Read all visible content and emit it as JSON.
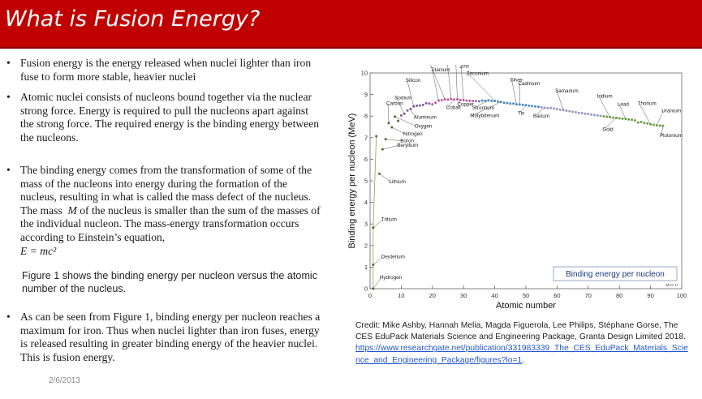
{
  "slide": {
    "title": "What is Fusion Energy?",
    "bullets": [
      "Fusion energy is the energy released when nuclei lighter than iron fuse to form more stable, heavier nuclei",
      "Atomic nuclei consists of nucleons bound together via the nuclear strong force. Energy is required to pull the nucleons apart against the strong force. The required energy is the binding energy between the nucleons.",
      "The binding energy comes from the transformation of some of the mass of the nucleons into energy during the formation of the nucleus, resulting in what is called the mass defect of the nucleus. The mass",
      "As can be seen from Figure 1, binding energy per nucleon reaches a maximum for iron. Thus when nuclei lighter than iron fuses, energy is released resulting in greater binding energy of the heavier nuclei. This is fusion energy."
    ],
    "bullet3_mass_symbol": "M",
    "bullet3_rest": " of the nucleus is smaller than the sum of the masses of the individual nucleon.  The mass-energy transformation occurs according to Einstein’s equation,",
    "equation": "E = mc²",
    "figure_note": "Figure 1 shows the binding energy per nucleon versus the atomic number of the nucleus.",
    "date": "2/6/2013",
    "bullet_symbol": "•"
  },
  "credit": {
    "text": "Credit: Mike Ashby, Hannah Melia, Magda Figuerola, Lee Philips, Stéphane Gorse, The CES EduPack Materials Science and Engineering Package, Granta Design Limited 2018.",
    "link": "https://www.researchgate.net/publication/331983339_The_CES_EduPack_Materials_Science_and_Engineering_Package/figures?lo=1",
    "period": "."
  },
  "chart_data": {
    "type": "scatter",
    "xlabel": "Atomic number",
    "ylabel": "Binding energy per nucleon (MeV)",
    "legend_label": "Binding energy per nucleon",
    "legend_placement": "bottom-right",
    "stamp": "MAY 17",
    "xlim": [
      0,
      100
    ],
    "ylim": [
      0,
      10
    ],
    "xticks": [
      0,
      10,
      20,
      30,
      40,
      50,
      60,
      70,
      80,
      90,
      100
    ],
    "yticks": [
      0,
      1,
      2,
      3,
      4,
      5,
      6,
      7,
      8,
      9,
      10
    ],
    "grid": false,
    "series_color": "#7a9a3a",
    "labels": [
      {
        "name": "Hydrogen",
        "z": 1,
        "be": 0.0
      },
      {
        "name": "Deuterium",
        "z": 1,
        "be": 1.11
      },
      {
        "name": "Tritium",
        "z": 1,
        "be": 2.83
      },
      {
        "name": "Lithium",
        "z": 3,
        "be": 5.33
      },
      {
        "name": "Beryllium",
        "z": 4,
        "be": 6.46
      },
      {
        "name": "Boron",
        "z": 5,
        "be": 6.93
      },
      {
        "name": "Nitrogen",
        "z": 7,
        "be": 7.48
      },
      {
        "name": "Oxygen",
        "z": 8,
        "be": 7.98
      },
      {
        "name": "Carbon",
        "z": 6,
        "be": 7.68
      },
      {
        "name": "Aluminum",
        "z": 13,
        "be": 8.33
      },
      {
        "name": "Sodium",
        "z": 11,
        "be": 8.11
      },
      {
        "name": "Silicon",
        "z": 14,
        "be": 8.45
      },
      {
        "name": "Titanium",
        "z": 22,
        "be": 8.72
      },
      {
        "name": "Chromium",
        "z": 24,
        "be": 8.78
      },
      {
        "name": "Iron",
        "z": 26,
        "be": 8.79
      },
      {
        "name": "Nickel",
        "z": 28,
        "be": 8.78
      },
      {
        "name": "Cobalt",
        "z": 27,
        "be": 8.77
      },
      {
        "name": "Copper",
        "z": 29,
        "be": 8.75
      },
      {
        "name": "Zinc",
        "z": 30,
        "be": 8.74
      },
      {
        "name": "Zirconium",
        "z": 40,
        "be": 8.71
      },
      {
        "name": "Silver",
        "z": 47,
        "be": 8.55
      },
      {
        "name": "Strontium",
        "z": 38,
        "be": 8.73
      },
      {
        "name": "Tin",
        "z": 50,
        "be": 8.51
      },
      {
        "name": "Molybdenum",
        "z": 42,
        "be": 8.66
      },
      {
        "name": "Barium",
        "z": 56,
        "be": 8.39
      },
      {
        "name": "Cadmium",
        "z": 48,
        "be": 8.54
      },
      {
        "name": "Samarium",
        "z": 62,
        "be": 8.28
      },
      {
        "name": "Gold",
        "z": 79,
        "be": 7.92
      },
      {
        "name": "Iridium",
        "z": 77,
        "be": 7.95
      },
      {
        "name": "Lead",
        "z": 82,
        "be": 7.87
      },
      {
        "name": "Thorium",
        "z": 90,
        "be": 7.62
      },
      {
        "name": "Uranium",
        "z": 92,
        "be": 7.57
      },
      {
        "name": "Plutonium",
        "z": 94,
        "be": 7.55
      }
    ],
    "points": [
      [
        1,
        0.0
      ],
      [
        1,
        1.11
      ],
      [
        1,
        2.83
      ],
      [
        2,
        7.07
      ],
      [
        3,
        5.33
      ],
      [
        4,
        6.46
      ],
      [
        5,
        6.93
      ],
      [
        6,
        7.68
      ],
      [
        7,
        7.48
      ],
      [
        8,
        7.98
      ],
      [
        9,
        7.78
      ],
      [
        10,
        8.03
      ],
      [
        11,
        8.11
      ],
      [
        12,
        8.26
      ],
      [
        13,
        8.33
      ],
      [
        14,
        8.45
      ],
      [
        15,
        8.48
      ],
      [
        16,
        8.49
      ],
      [
        17,
        8.52
      ],
      [
        18,
        8.6
      ],
      [
        19,
        8.58
      ],
      [
        20,
        8.55
      ],
      [
        21,
        8.62
      ],
      [
        22,
        8.72
      ],
      [
        23,
        8.74
      ],
      [
        24,
        8.78
      ],
      [
        25,
        8.77
      ],
      [
        26,
        8.79
      ],
      [
        27,
        8.77
      ],
      [
        28,
        8.78
      ],
      [
        29,
        8.75
      ],
      [
        30,
        8.74
      ],
      [
        31,
        8.72
      ],
      [
        32,
        8.71
      ],
      [
        33,
        8.7
      ],
      [
        34,
        8.7
      ],
      [
        35,
        8.69
      ],
      [
        36,
        8.72
      ],
      [
        37,
        8.71
      ],
      [
        38,
        8.73
      ],
      [
        39,
        8.71
      ],
      [
        40,
        8.71
      ],
      [
        41,
        8.68
      ],
      [
        42,
        8.66
      ],
      [
        43,
        8.62
      ],
      [
        44,
        8.61
      ],
      [
        45,
        8.58
      ],
      [
        46,
        8.58
      ],
      [
        47,
        8.55
      ],
      [
        48,
        8.54
      ],
      [
        49,
        8.52
      ],
      [
        50,
        8.51
      ],
      [
        51,
        8.48
      ],
      [
        52,
        8.47
      ],
      [
        53,
        8.45
      ],
      [
        54,
        8.43
      ],
      [
        55,
        8.41
      ],
      [
        56,
        8.39
      ],
      [
        57,
        8.37
      ],
      [
        58,
        8.38
      ],
      [
        59,
        8.35
      ],
      [
        60,
        8.33
      ],
      [
        61,
        8.3
      ],
      [
        62,
        8.28
      ],
      [
        63,
        8.25
      ],
      [
        64,
        8.23
      ],
      [
        65,
        8.2
      ],
      [
        66,
        8.18
      ],
      [
        67,
        8.15
      ],
      [
        68,
        8.14
      ],
      [
        69,
        8.11
      ],
      [
        70,
        8.1
      ],
      [
        71,
        8.07
      ],
      [
        72,
        8.05
      ],
      [
        73,
        8.03
      ],
      [
        74,
        8.01
      ],
      [
        75,
        7.99
      ],
      [
        76,
        7.97
      ],
      [
        77,
        7.95
      ],
      [
        78,
        7.93
      ],
      [
        79,
        7.92
      ],
      [
        80,
        7.9
      ],
      [
        81,
        7.88
      ],
      [
        82,
        7.87
      ],
      [
        83,
        7.85
      ],
      [
        84,
        7.83
      ],
      [
        85,
        7.8
      ],
      [
        86,
        7.7
      ],
      [
        87,
        7.73
      ],
      [
        88,
        7.68
      ],
      [
        89,
        7.66
      ],
      [
        90,
        7.62
      ],
      [
        91,
        7.6
      ],
      [
        92,
        7.57
      ],
      [
        93,
        7.56
      ],
      [
        94,
        7.55
      ]
    ]
  }
}
